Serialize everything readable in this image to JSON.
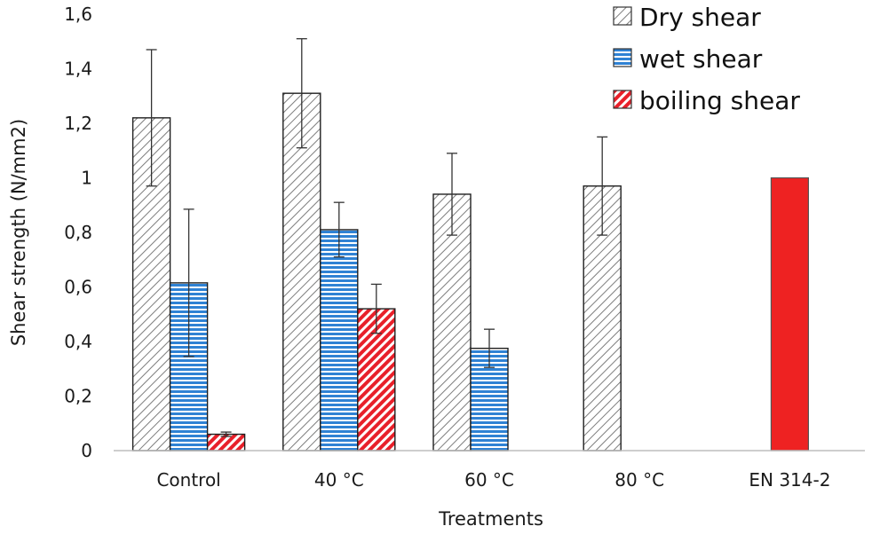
{
  "chart_data": {
    "type": "bar",
    "title": "",
    "xlabel": "Treatments",
    "ylabel": "Shear strength (N/mm2)",
    "ylim": [
      0,
      1.6
    ],
    "yticks": [
      "0",
      "0,2",
      "0,4",
      "0,6",
      "0,8",
      "1",
      "1,2",
      "1,4",
      "1,6"
    ],
    "ytick_values": [
      0,
      0.2,
      0.4,
      0.6,
      0.8,
      1.0,
      1.2,
      1.4,
      1.6
    ],
    "categories": [
      "Control",
      "40 °C",
      "60 °C",
      "80 °C",
      "EN 314-2"
    ],
    "series": [
      {
        "name": "Dry shear",
        "pattern": "diagonal-grey",
        "color": "#808080",
        "values": [
          1.22,
          1.31,
          0.94,
          0.97,
          null
        ],
        "errors": [
          0.25,
          0.2,
          0.15,
          0.18,
          null
        ]
      },
      {
        "name": "wet shear",
        "pattern": "horizontal-blue",
        "color": "#2f7fd0",
        "values": [
          0.615,
          0.81,
          0.375,
          null,
          null
        ],
        "errors": [
          0.27,
          0.1,
          0.07,
          null,
          null
        ]
      },
      {
        "name": "boiling shear",
        "pattern": "diagonal-red",
        "color": "#e8202a",
        "values": [
          0.06,
          0.52,
          null,
          null,
          null
        ],
        "errors": [
          0.008,
          0.09,
          null,
          null,
          null
        ]
      }
    ],
    "reference": {
      "category": "EN 314-2",
      "value": 1.0,
      "color": "#ee2222"
    },
    "legend_position": "top-right",
    "grid": false
  }
}
